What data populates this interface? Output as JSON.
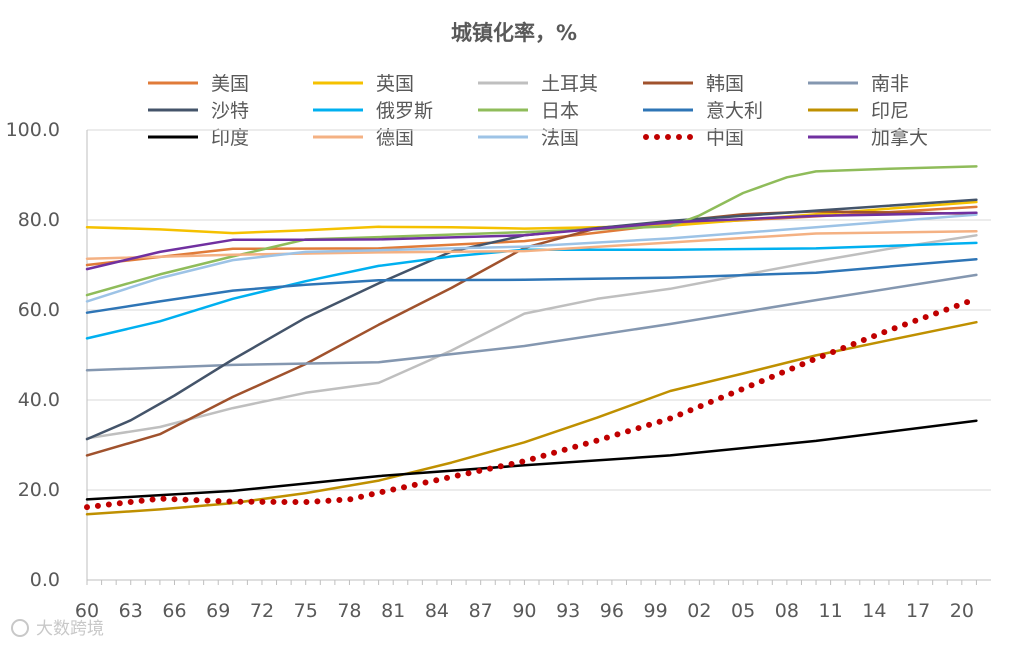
{
  "chart_data": {
    "type": "line",
    "title": "城镇化率，%",
    "xlabel": "",
    "ylabel": "",
    "ylim": [
      0,
      100
    ],
    "yticks": [
      0,
      20,
      40,
      60,
      80,
      100
    ],
    "ytick_labels": [
      "0.0",
      "20.0",
      "40.0",
      "60.0",
      "80.0",
      "100.0"
    ],
    "xlim": [
      1960,
      2022
    ],
    "xticks": [
      1960,
      1963,
      1966,
      1969,
      1972,
      1975,
      1978,
      1981,
      1984,
      1987,
      1990,
      1993,
      1996,
      1999,
      2002,
      2005,
      2008,
      2011,
      2014,
      2017,
      2020
    ],
    "xtick_labels": [
      "60",
      "63",
      "66",
      "69",
      "72",
      "75",
      "78",
      "81",
      "84",
      "87",
      "90",
      "93",
      "96",
      "99",
      "02",
      "05",
      "08",
      "11",
      "14",
      "17",
      "20"
    ],
    "legend_position": "top",
    "series": [
      {
        "name": "美国",
        "color": "#E07B39",
        "style": "solid",
        "x": [
          1960,
          1970,
          1980,
          1990,
          2000,
          2010,
          2021
        ],
        "values": [
          70.0,
          73.6,
          73.7,
          75.3,
          79.1,
          80.8,
          82.9
        ]
      },
      {
        "name": "英国",
        "color": "#F5C100",
        "style": "solid",
        "x": [
          1960,
          1965,
          1970,
          1975,
          1980,
          1985,
          1990,
          2000,
          2010,
          2021
        ],
        "values": [
          78.4,
          77.9,
          77.1,
          77.7,
          78.5,
          78.4,
          78.1,
          78.7,
          81.3,
          84.0
        ]
      },
      {
        "name": "土耳其",
        "color": "#BFBFBF",
        "style": "solid",
        "x": [
          1960,
          1965,
          1970,
          1975,
          1980,
          1985,
          1990,
          1995,
          2000,
          2005,
          2010,
          2015,
          2021
        ],
        "values": [
          31.5,
          34.0,
          38.2,
          41.6,
          43.8,
          51.0,
          59.2,
          62.5,
          64.7,
          67.8,
          70.8,
          73.6,
          76.6
        ]
      },
      {
        "name": "韩国",
        "color": "#A0522D",
        "style": "solid",
        "x": [
          1960,
          1965,
          1970,
          1975,
          1980,
          1985,
          1990,
          1995,
          2000,
          2005,
          2010,
          2021
        ],
        "values": [
          27.7,
          32.4,
          40.7,
          48.0,
          56.7,
          64.9,
          73.8,
          78.2,
          79.6,
          81.3,
          81.9,
          81.4
        ]
      },
      {
        "name": "南非",
        "color": "#8497B0",
        "style": "solid",
        "x": [
          1960,
          1970,
          1980,
          1990,
          2000,
          2010,
          2021
        ],
        "values": [
          46.6,
          47.8,
          48.4,
          52.0,
          56.9,
          62.2,
          67.8
        ]
      },
      {
        "name": "沙特",
        "color": "#44546A",
        "style": "solid",
        "x": [
          1960,
          1963,
          1966,
          1970,
          1975,
          1980,
          1985,
          1990,
          1995,
          2000,
          2010,
          2021
        ],
        "values": [
          31.3,
          35.5,
          41.0,
          49.0,
          58.3,
          65.9,
          73.0,
          76.6,
          78.2,
          79.8,
          82.1,
          84.5
        ]
      },
      {
        "name": "俄罗斯",
        "color": "#00B0F0",
        "style": "solid",
        "x": [
          1960,
          1965,
          1970,
          1975,
          1980,
          1985,
          1990,
          2000,
          2010,
          2021
        ],
        "values": [
          53.7,
          57.5,
          62.5,
          66.4,
          69.8,
          71.9,
          73.4,
          73.4,
          73.7,
          74.9
        ]
      },
      {
        "name": "日本",
        "color": "#8FBC5A",
        "style": "solid",
        "x": [
          1960,
          1965,
          1970,
          1975,
          1980,
          1990,
          2000,
          2002,
          2005,
          2008,
          2010,
          2015,
          2021
        ],
        "values": [
          63.3,
          67.9,
          71.9,
          75.7,
          76.2,
          77.3,
          78.6,
          81.0,
          86.0,
          89.5,
          90.8,
          91.4,
          91.9
        ]
      },
      {
        "name": "意大利",
        "color": "#2E75B6",
        "style": "solid",
        "x": [
          1960,
          1965,
          1970,
          1975,
          1980,
          1990,
          2000,
          2010,
          2021
        ],
        "values": [
          59.4,
          61.9,
          64.3,
          65.6,
          66.6,
          66.7,
          67.2,
          68.3,
          71.3
        ]
      },
      {
        "name": "印尼",
        "color": "#BF9000",
        "style": "solid",
        "x": [
          1960,
          1965,
          1970,
          1975,
          1980,
          1985,
          1990,
          1995,
          2000,
          2005,
          2010,
          2015,
          2021
        ],
        "values": [
          14.6,
          15.7,
          17.1,
          19.3,
          22.1,
          26.1,
          30.6,
          36.1,
          42.0,
          45.9,
          49.9,
          53.3,
          57.3
        ]
      },
      {
        "name": "印度",
        "color": "#000000",
        "style": "solid",
        "x": [
          1960,
          1970,
          1980,
          1990,
          2000,
          2010,
          2021
        ],
        "values": [
          17.9,
          19.8,
          23.1,
          25.5,
          27.7,
          30.9,
          35.4
        ]
      },
      {
        "name": "德国",
        "color": "#F4B183",
        "style": "solid",
        "x": [
          1960,
          1970,
          1980,
          1990,
          2000,
          2010,
          2021
        ],
        "values": [
          71.4,
          72.3,
          72.8,
          73.1,
          75.0,
          77.0,
          77.5
        ]
      },
      {
        "name": "法国",
        "color": "#9DC3E6",
        "style": "solid",
        "x": [
          1960,
          1965,
          1970,
          1975,
          1980,
          1990,
          2000,
          2010,
          2021
        ],
        "values": [
          61.9,
          67.1,
          71.1,
          72.9,
          73.3,
          74.1,
          75.9,
          78.4,
          81.2
        ]
      },
      {
        "name": "中国",
        "color": "#C00000",
        "style": "dotted",
        "x": [
          1960,
          1965,
          1970,
          1975,
          1978,
          1980,
          1985,
          1990,
          1995,
          2000,
          2005,
          2010,
          2015,
          2021
        ],
        "values": [
          16.2,
          18.1,
          17.4,
          17.3,
          17.9,
          19.4,
          22.9,
          26.4,
          31.0,
          35.9,
          42.5,
          49.2,
          55.5,
          62.5
        ]
      },
      {
        "name": "加拿大",
        "color": "#7030A0",
        "style": "solid",
        "x": [
          1960,
          1965,
          1970,
          1975,
          1980,
          1990,
          2000,
          2010,
          2021
        ],
        "values": [
          69.1,
          72.9,
          75.6,
          75.6,
          75.7,
          76.6,
          79.5,
          80.9,
          81.6
        ]
      }
    ]
  },
  "watermark": "大数跨境"
}
